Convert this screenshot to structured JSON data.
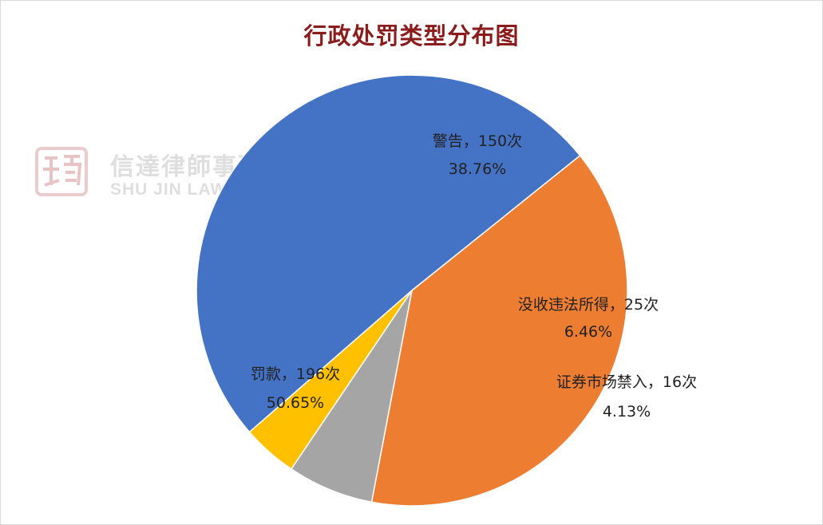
{
  "chart_data": {
    "type": "pie",
    "title": "行政处罚类型分布图",
    "slices": [
      {
        "label": "警告，150次",
        "percent_label": "38.76%",
        "value": 150,
        "percent": 38.76,
        "color": "#ed7d31"
      },
      {
        "label": "没收违法所得，25次",
        "percent_label": "6.46%",
        "value": 25,
        "percent": 6.46,
        "color": "#a5a5a5"
      },
      {
        "label": "证券市场禁入，16次",
        "percent_label": "4.13%",
        "value": 16,
        "percent": 4.13,
        "color": "#ffc000"
      },
      {
        "label": "罚款，196次",
        "percent_label": "50.65%",
        "value": 196,
        "percent": 50.65,
        "color": "#4472c4"
      }
    ],
    "start_angle_deg": -38.76,
    "direction": "clockwise",
    "legend": "none",
    "data_labels": "category, value, percentage"
  },
  "watermark": {
    "name_cn": "信達律師事務所",
    "name_en": "SHU JIN LAW FIRM"
  }
}
